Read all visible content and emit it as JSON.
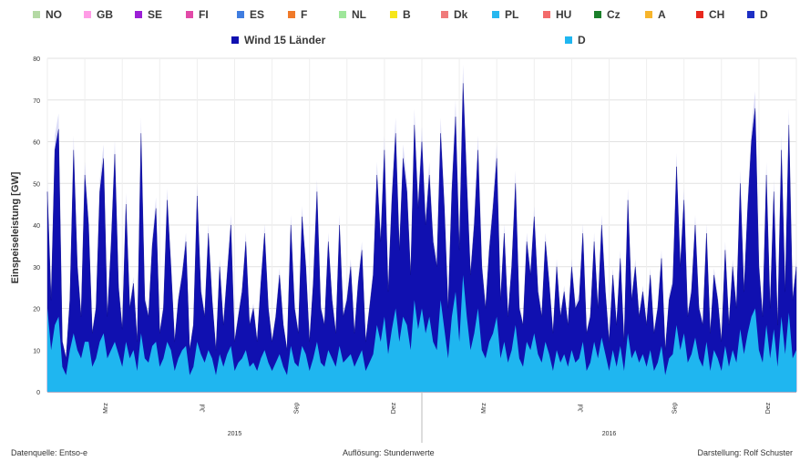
{
  "legend": {
    "row1": [
      {
        "label": "NO",
        "color": "#b4d9a4"
      },
      {
        "label": "GB",
        "color": "#ff9ce6"
      },
      {
        "label": "SE",
        "color": "#9b1fd6"
      },
      {
        "label": "FI",
        "color": "#e24aa8"
      },
      {
        "label": "ES",
        "color": "#3f7de0"
      },
      {
        "label": "F",
        "color": "#f07a2a"
      },
      {
        "label": "NL",
        "color": "#9ee69a"
      },
      {
        "label": "B",
        "color": "#f6e61a"
      },
      {
        "label": "Dk",
        "color": "#f07a7a"
      },
      {
        "label": "PL",
        "color": "#27b8ef"
      },
      {
        "label": "HU",
        "color": "#f36b6b"
      },
      {
        "label": "Cz",
        "color": "#1a7f2a"
      },
      {
        "label": "A",
        "color": "#f7b52c"
      },
      {
        "label": "CH",
        "color": "#e8281e"
      },
      {
        "label": "D",
        "color": "#1d2fc4"
      }
    ],
    "row2": [
      {
        "label": "Wind 15 Länder",
        "color": "#1010b0"
      },
      {
        "label": "D",
        "color": "#1fb6f0"
      }
    ]
  },
  "chart_data": {
    "type": "area",
    "title": "",
    "xlabel": "",
    "ylabel": "Einspeiseleistung [GW]",
    "ylim": [
      0,
      80
    ],
    "yticks": [
      "0",
      "10",
      "20",
      "30",
      "40",
      "50",
      "60",
      "70",
      "80"
    ],
    "x_tick_labels": [
      "Mrz",
      "Jul",
      "Sep",
      "Dez",
      "Mrz",
      "Jul",
      "Sep",
      "Dez"
    ],
    "year_labels": [
      "2015",
      "2016"
    ],
    "grid": true,
    "legend_position": "top",
    "series": [
      {
        "name": "Wind 15 Länder",
        "color": "#1010b0",
        "values": [
          48,
          22,
          58,
          63,
          12,
          8,
          22,
          58,
          30,
          18,
          52,
          40,
          14,
          20,
          48,
          56,
          18,
          35,
          57,
          25,
          15,
          45,
          20,
          26,
          12,
          62,
          22,
          18,
          35,
          44,
          14,
          20,
          46,
          30,
          12,
          22,
          28,
          36,
          10,
          16,
          47,
          24,
          18,
          38,
          22,
          10,
          30,
          16,
          28,
          40,
          12,
          18,
          24,
          36,
          16,
          20,
          12,
          26,
          38,
          20,
          12,
          18,
          28,
          16,
          10,
          40,
          20,
          14,
          42,
          30,
          12,
          26,
          48,
          20,
          16,
          36,
          22,
          14,
          40,
          18,
          22,
          30,
          14,
          26,
          34,
          12,
          20,
          28,
          52,
          36,
          58,
          24,
          46,
          62,
          34,
          56,
          48,
          28,
          64,
          44,
          60,
          40,
          52,
          36,
          30,
          62,
          44,
          20,
          48,
          66,
          34,
          74,
          50,
          28,
          40,
          58,
          30,
          20,
          34,
          44,
          56,
          22,
          38,
          18,
          30,
          50,
          20,
          16,
          36,
          28,
          42,
          24,
          18,
          36,
          26,
          14,
          30,
          18,
          24,
          16,
          30,
          20,
          22,
          38,
          14,
          18,
          36,
          20,
          40,
          24,
          12,
          28,
          16,
          32,
          12,
          46,
          22,
          30,
          18,
          24,
          16,
          28,
          14,
          20,
          32,
          10,
          22,
          26,
          54,
          30,
          46,
          18,
          24,
          40,
          20,
          16,
          38,
          14,
          28,
          22,
          12,
          34,
          16,
          30,
          20,
          50,
          24,
          44,
          60,
          68,
          30,
          18,
          52,
          20,
          48,
          16,
          58,
          24,
          64,
          22,
          30
        ],
        "x_days": [
          0,
          3,
          6,
          9,
          12,
          15,
          18,
          21,
          24,
          27,
          30,
          33,
          36,
          39,
          42,
          45,
          48,
          51,
          54,
          57,
          60,
          63,
          66,
          69,
          72,
          75,
          78,
          81,
          84,
          87,
          90,
          93,
          96,
          99,
          102,
          105,
          108,
          111,
          114,
          117,
          120,
          123,
          126,
          129,
          132,
          135,
          138,
          141,
          144,
          147,
          150,
          153,
          156,
          159,
          162,
          165,
          168,
          171,
          174,
          177,
          180,
          183,
          186,
          189,
          192,
          195,
          198,
          201,
          204,
          207,
          210,
          213,
          216,
          219,
          222,
          225,
          228,
          231,
          234,
          237,
          240,
          243,
          246,
          249,
          252,
          255,
          258,
          261,
          264,
          267,
          270,
          273,
          276,
          279,
          282,
          285,
          288,
          291,
          294,
          297,
          300,
          303,
          306,
          309,
          312,
          315,
          318,
          321,
          324,
          327,
          330,
          333,
          336,
          339,
          342,
          345,
          348,
          351,
          354,
          357,
          360,
          363,
          366,
          369,
          372,
          375,
          378,
          381,
          384,
          387,
          390,
          393,
          396,
          399,
          402,
          405,
          408,
          411,
          414,
          417,
          420,
          423,
          426,
          429,
          432,
          435,
          438,
          441,
          444,
          447,
          450,
          453,
          456,
          459,
          462,
          465,
          468,
          471,
          474,
          477,
          480,
          483,
          486,
          489,
          492,
          495,
          498,
          501,
          504,
          507,
          510,
          513,
          516,
          519,
          522,
          525,
          528,
          531,
          534,
          537,
          540,
          543,
          546,
          549,
          552,
          555,
          558,
          561,
          564,
          567,
          570,
          573,
          576,
          579,
          582,
          585,
          588,
          591,
          594,
          597,
          600
        ]
      },
      {
        "name": "D",
        "color": "#1fb6f0",
        "values": [
          20,
          10,
          16,
          18,
          6,
          4,
          10,
          14,
          10,
          8,
          12,
          12,
          6,
          8,
          12,
          14,
          8,
          10,
          12,
          9,
          6,
          12,
          8,
          10,
          5,
          14,
          8,
          7,
          11,
          12,
          6,
          8,
          12,
          10,
          5,
          8,
          10,
          11,
          4,
          6,
          12,
          9,
          7,
          10,
          8,
          4,
          9,
          6,
          9,
          11,
          5,
          7,
          8,
          10,
          6,
          7,
          5,
          8,
          10,
          7,
          5,
          7,
          9,
          6,
          4,
          11,
          7,
          6,
          11,
          9,
          5,
          8,
          12,
          7,
          6,
          10,
          8,
          6,
          11,
          7,
          8,
          9,
          6,
          8,
          10,
          5,
          7,
          9,
          16,
          12,
          18,
          9,
          15,
          20,
          12,
          18,
          16,
          10,
          22,
          15,
          20,
          14,
          18,
          12,
          10,
          22,
          15,
          8,
          18,
          24,
          12,
          28,
          18,
          10,
          14,
          20,
          10,
          8,
          12,
          14,
          18,
          8,
          12,
          7,
          10,
          16,
          8,
          6,
          12,
          10,
          14,
          9,
          7,
          12,
          9,
          5,
          10,
          7,
          9,
          6,
          10,
          7,
          8,
          12,
          5,
          7,
          12,
          8,
          13,
          9,
          5,
          10,
          6,
          11,
          5,
          14,
          8,
          10,
          7,
          9,
          6,
          10,
          5,
          7,
          11,
          4,
          8,
          9,
          16,
          10,
          14,
          7,
          9,
          13,
          8,
          6,
          12,
          5,
          10,
          8,
          5,
          11,
          6,
          10,
          7,
          15,
          9,
          14,
          18,
          20,
          10,
          7,
          16,
          8,
          15,
          6,
          18,
          9,
          19,
          8,
          10
        ],
        "x_days": "same as Wind 15 Länder"
      }
    ]
  },
  "footer": {
    "left": "Datenquelle: Entso-e",
    "center": "Auflösung: Stundenwerte",
    "right": "Darstellung: Rolf Schuster"
  }
}
